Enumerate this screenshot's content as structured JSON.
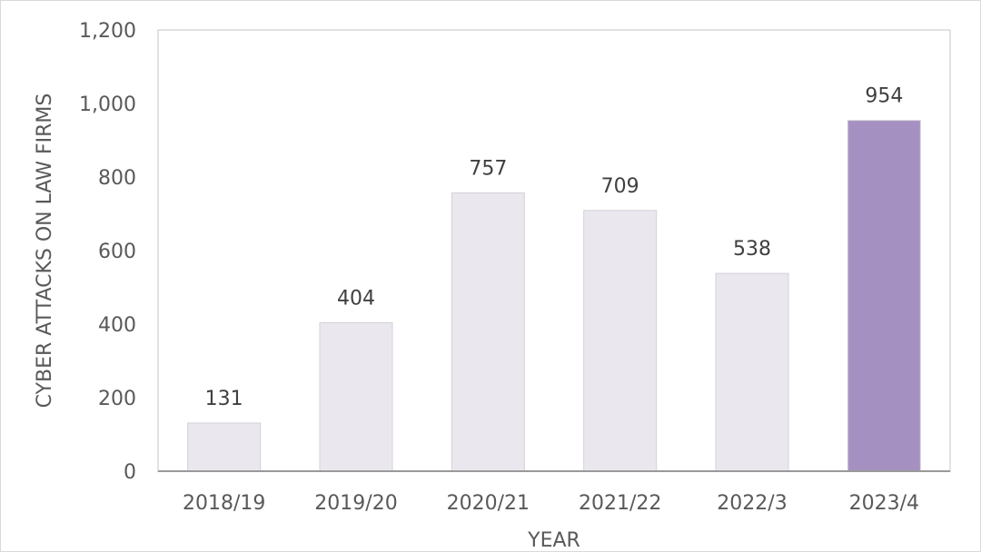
{
  "chart_data": {
    "type": "bar",
    "title": "",
    "xlabel": "YEAR",
    "ylabel": "CYBER ATTACKS ON LAW FIRMS",
    "categories": [
      "2018/19",
      "2019/20",
      "2020/21",
      "2021/22",
      "2022/3",
      "2023/4"
    ],
    "values": [
      131,
      404,
      757,
      709,
      538,
      954
    ],
    "data_labels": [
      "131",
      "404",
      "757",
      "709",
      "538",
      "954"
    ],
    "ylim": [
      0,
      1200
    ],
    "yticks": [
      0,
      200,
      400,
      600,
      800,
      1000,
      1200
    ],
    "ytick_labels": [
      "0",
      "200",
      "400",
      "600",
      "800",
      "1,000",
      "1,200"
    ],
    "bar_colors": [
      "#ebe7ef",
      "#ebe7ef",
      "#ebe7ef",
      "#ebe7ef",
      "#ebe7ef",
      "#a591c1"
    ],
    "bar_border_color": "#d4d0d8",
    "grid": false,
    "legend": "none"
  }
}
